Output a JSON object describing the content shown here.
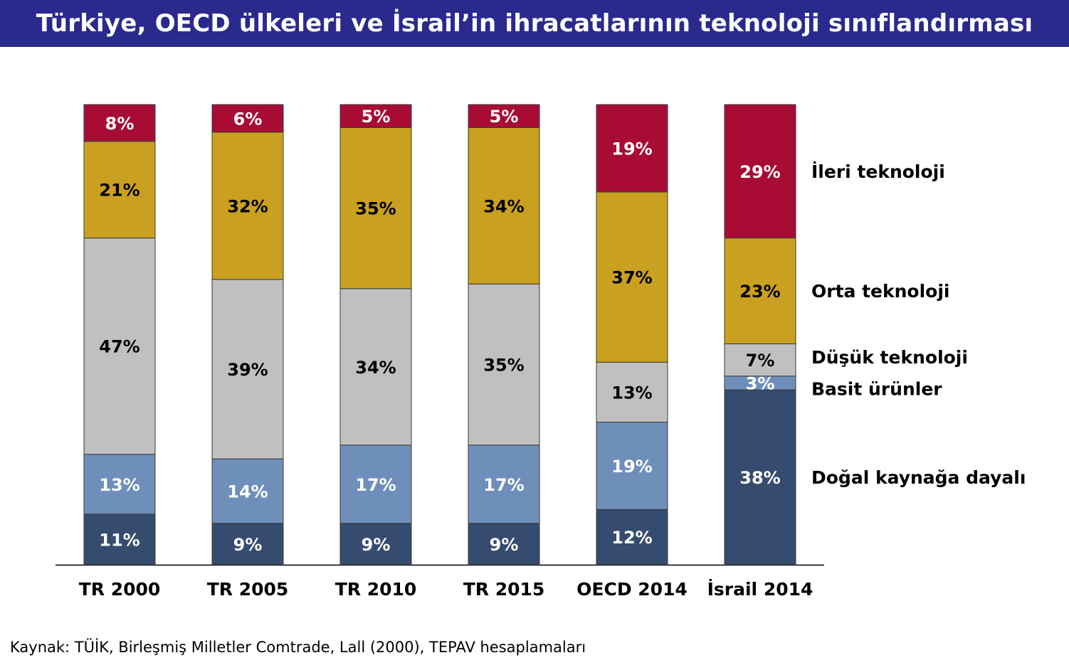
{
  "title": "Türkiye, OECD ülkeleri ve İsrail’in ihracatlarının teknoloji sınıflandırması",
  "source": "Kaynak: TÜİK, Birleşmiş Milletler Comtrade, Lall (2000), TEPAV hesaplamaları",
  "chart_data": {
    "type": "bar",
    "stacked": true,
    "categories": [
      "TR 2000",
      "TR 2005",
      "TR 2010",
      "TR 2015",
      "OECD 2014",
      "İsrail 2014"
    ],
    "series": [
      {
        "name": "Doğal kaynağa dayalı",
        "color": "#364c6e",
        "values": [
          11,
          9,
          9,
          9,
          12,
          38
        ],
        "labels": [
          "11%",
          "9%",
          "9%",
          "9%",
          "12%",
          "38%"
        ],
        "label_color": "#ffffff"
      },
      {
        "name": "Basit ürünler",
        "color": "#6f8fbb",
        "values": [
          13,
          14,
          17,
          17,
          19,
          3
        ],
        "labels": [
          "13%",
          "14%",
          "17%",
          "17%",
          "19%",
          "3%"
        ],
        "label_color": "#ffffff"
      },
      {
        "name": "Düşük teknoloji",
        "color": "#c0c0c0",
        "values": [
          47,
          39,
          34,
          35,
          13,
          7
        ],
        "labels": [
          "47%",
          "39%",
          "34%",
          "35%",
          "13%",
          "7%"
        ],
        "label_color": "#000000"
      },
      {
        "name": "Orta teknoloji",
        "color": "#c9a020",
        "values": [
          21,
          32,
          35,
          34,
          37,
          23
        ],
        "labels": [
          "21%",
          "32%",
          "35%",
          "34%",
          "37%",
          "23%"
        ],
        "label_color": "#000000"
      },
      {
        "name": "İleri teknoloji",
        "color": "#a80c35",
        "values": [
          8,
          6,
          5,
          5,
          19,
          29
        ],
        "labels": [
          "8%",
          "6%",
          "5%",
          "5%",
          "19%",
          "29%"
        ],
        "label_color": "#ffffff"
      }
    ],
    "ylim": [
      0,
      100
    ],
    "grid": false,
    "legend_placement": "right"
  }
}
